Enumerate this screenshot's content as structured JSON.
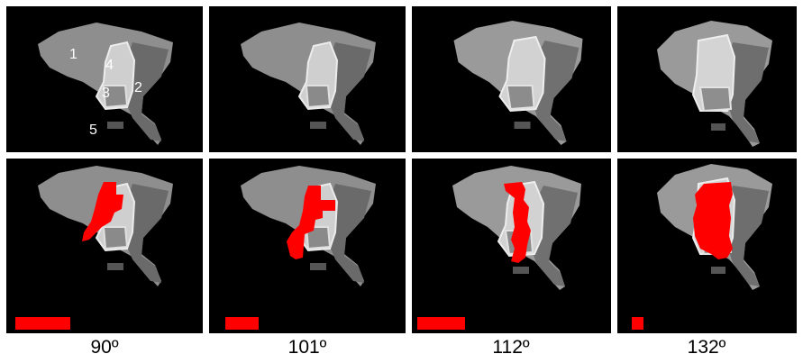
{
  "colors": {
    "background": "#000000",
    "tissue_light": "#9a9a9a",
    "tissue_mid": "#7a7a7a",
    "tissue_dark": "#5c5c5c",
    "bright_structure": "#d8d8d8",
    "overlay": "#ff0000"
  },
  "region_labels": [
    "1",
    "2",
    "3",
    "4",
    "5"
  ],
  "angles": [
    "90º",
    "101º",
    "112º",
    "132º"
  ],
  "overlay_extent_fraction": [
    0.82,
    0.49,
    0.71,
    0.17
  ]
}
